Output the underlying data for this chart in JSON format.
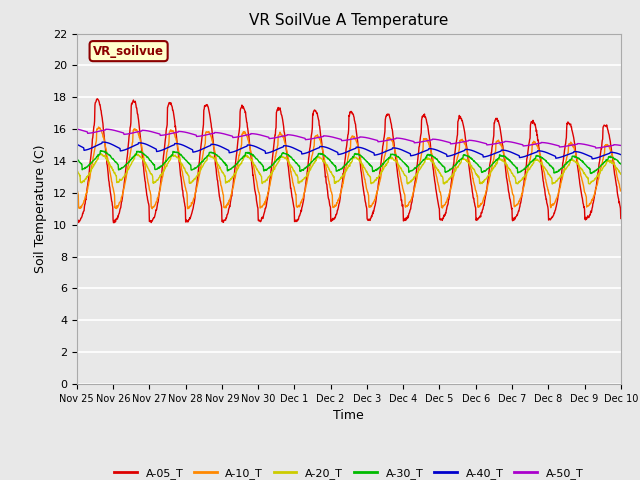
{
  "title": "VR SoilVue A Temperature",
  "xlabel": "Time",
  "ylabel": "Soil Temperature (C)",
  "ylim": [
    0,
    22
  ],
  "yticks": [
    0,
    2,
    4,
    6,
    8,
    10,
    12,
    14,
    16,
    18,
    20,
    22
  ],
  "bg_color": "#e8e8e8",
  "series": [
    {
      "label": "A-05_T",
      "color": "#dd0000"
    },
    {
      "label": "A-10_T",
      "color": "#ff8800"
    },
    {
      "label": "A-20_T",
      "color": "#cccc00"
    },
    {
      "label": "A-30_T",
      "color": "#00bb00"
    },
    {
      "label": "A-40_T",
      "color": "#0000cc"
    },
    {
      "label": "A-50_T",
      "color": "#aa00cc"
    }
  ],
  "watermark_text": "VR_soilvue",
  "watermark_color": "#8b0000",
  "watermark_bg": "#ffffcc",
  "xtick_labels": [
    "Nov 25",
    "Nov 26",
    "Nov 27",
    "Nov 28",
    "Nov 29",
    "Nov 30",
    "Dec 1",
    "Dec 2",
    "Dec 3",
    "Dec 4",
    "Dec 5",
    "Dec 6",
    "Dec 7",
    "Dec 8",
    "Dec 9",
    "Dec 10"
  ]
}
